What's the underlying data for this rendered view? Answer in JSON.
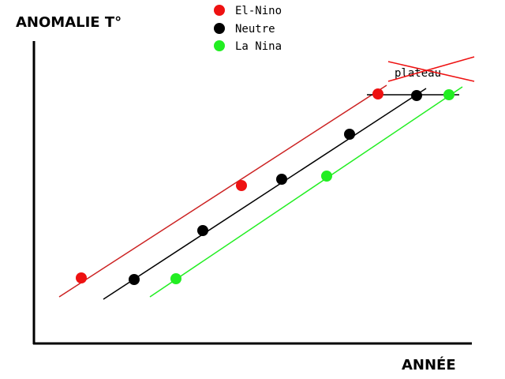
{
  "axes": {
    "y_label": "ANOMALIE T°",
    "x_label": "ANNÉE"
  },
  "legend": [
    {
      "label": "El-Nino"
    },
    {
      "label": "Neutre"
    },
    {
      "label": "La Nina"
    }
  ],
  "annotation": "plateau"
}
